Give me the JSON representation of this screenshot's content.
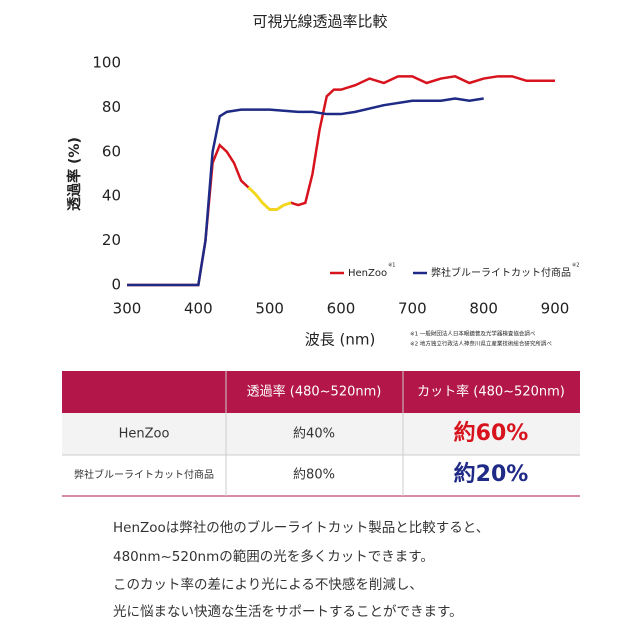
{
  "chart_data": {
    "type": "line",
    "title": "可視光線透過率比較",
    "x_label": "波長 (nm)",
    "y_label": "透過率 (%)",
    "xlim": [
      300,
      900
    ],
    "xticks": [
      300,
      400,
      500,
      600,
      700,
      800,
      900
    ],
    "ylim": [
      0,
      100
    ],
    "yticks": [
      0,
      20,
      40,
      60,
      80,
      100
    ],
    "legend": "lower right",
    "highlight": {
      "color": "#f2d91a",
      "range": [
        470,
        530
      ]
    },
    "series": [
      {
        "name": "HenZoo",
        "note": "※1",
        "color": "#d7141e",
        "x": [
          300,
          400,
          410,
          420,
          430,
          440,
          450,
          460,
          470,
          480,
          490,
          500,
          510,
          520,
          530,
          540,
          550,
          560,
          570,
          580,
          590,
          600,
          620,
          640,
          660,
          680,
          700,
          720,
          740,
          760,
          780,
          800,
          820,
          840,
          860,
          880,
          900
        ],
        "values": [
          0,
          0,
          20,
          55,
          63,
          60,
          55,
          47,
          44,
          41,
          37,
          34,
          34,
          36,
          37,
          36,
          37,
          50,
          70,
          85,
          88,
          88,
          90,
          93,
          91,
          94,
          94,
          91,
          93,
          94,
          91,
          93,
          94,
          94,
          92,
          92,
          92
        ]
      },
      {
        "name": "弊社ブルーライトカット付商品",
        "note": "※2",
        "color": "#1e2a86",
        "x": [
          300,
          400,
          410,
          420,
          430,
          440,
          460,
          500,
          540,
          560,
          580,
          600,
          620,
          660,
          700,
          740,
          760,
          780,
          800
        ],
        "values": [
          0,
          0,
          20,
          60,
          76,
          78,
          79,
          79,
          78,
          78,
          77,
          77,
          78,
          81,
          83,
          83,
          84,
          83,
          84
        ]
      }
    ],
    "footnotes": [
      "※1 一般財団法人日本眼鏡普及光学器検査協会調べ",
      "※2 地方独立行政法人神奈川県立産業技術総合研究所調べ"
    ]
  },
  "table": {
    "header": [
      "透過率 (480~520nm)",
      "カット率 (480~520nm)"
    ],
    "rows": [
      [
        "HenZoo",
        "約40%",
        "約60%"
      ],
      [
        "弊社ブルーライトカット付商品",
        "約80%",
        "約20%"
      ]
    ]
  },
  "paragraph": [
    "HenZooは弊社の他のブルーライトカット製品と比較すると、",
    "480nm~520nmの範囲の光を多くカットできます。",
    "このカット率の差により光による不快感を削減し、",
    "光に悩まない快適な生活をサポートすることができます。"
  ]
}
